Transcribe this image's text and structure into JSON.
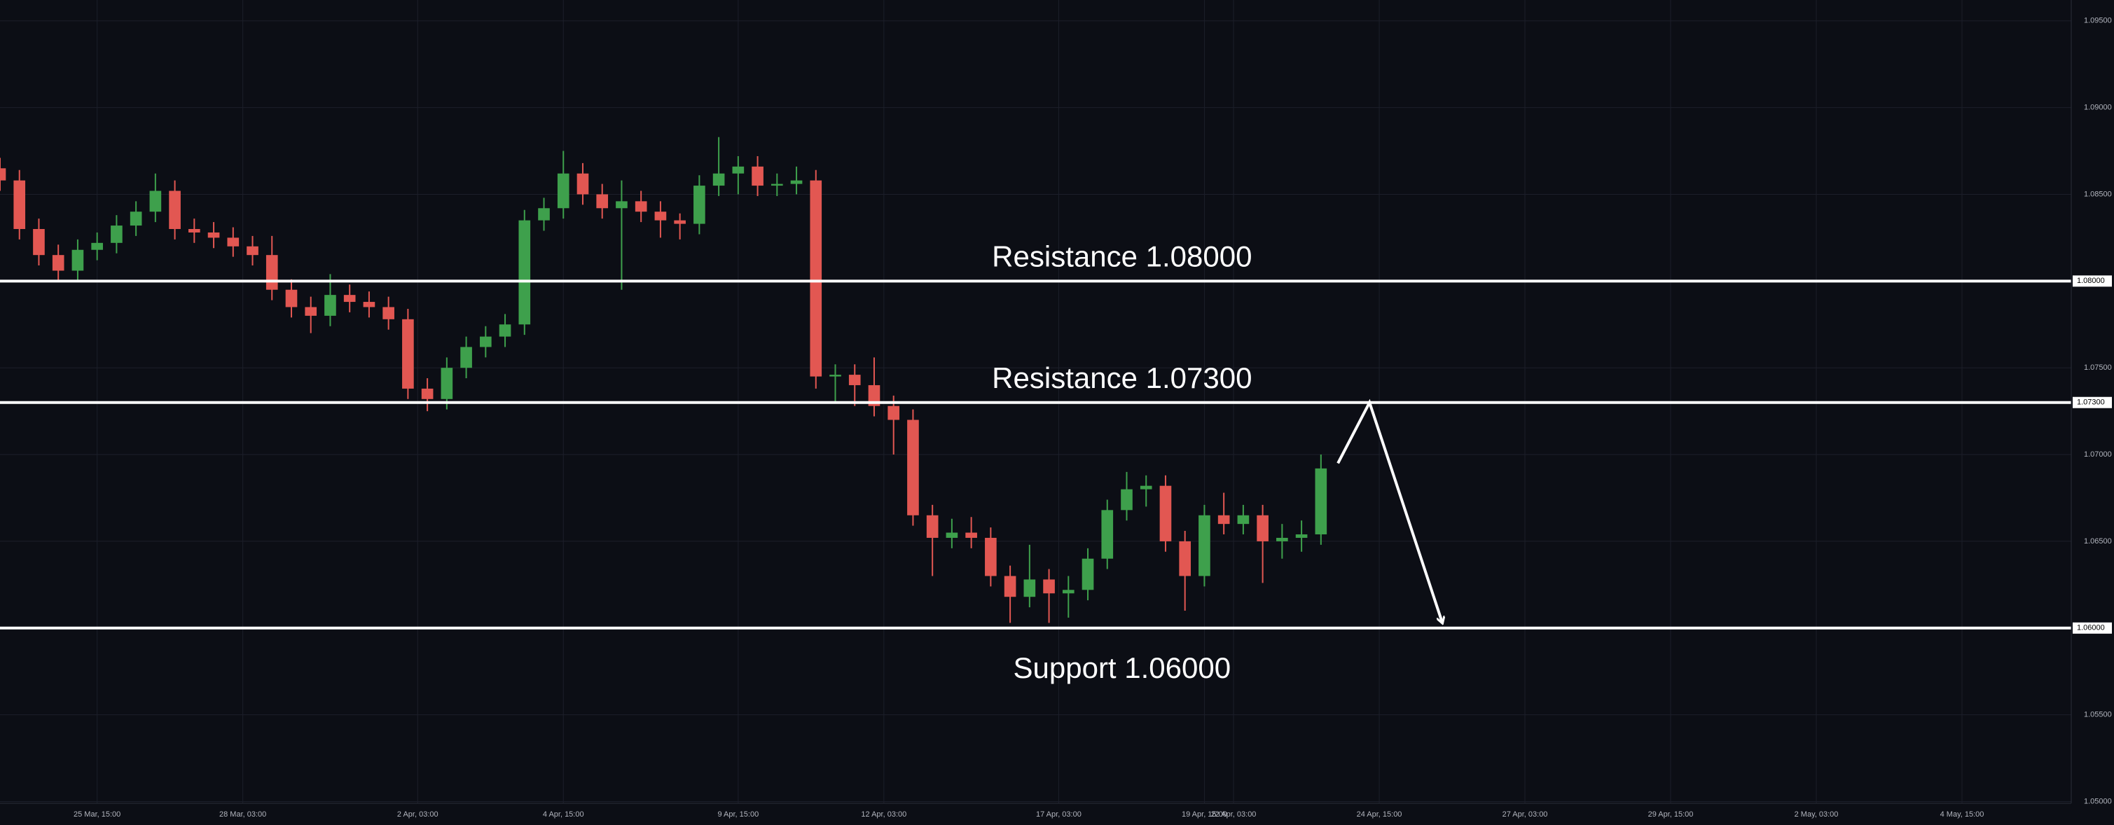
{
  "chart_data": {
    "type": "candlestick",
    "x": [
      0,
      8,
      16,
      24,
      32,
      40,
      48,
      56,
      64,
      72,
      80,
      88,
      96,
      104,
      112,
      120,
      128,
      136,
      144,
      152,
      160,
      168,
      176,
      184,
      192,
      200,
      208,
      216,
      224,
      232,
      240,
      248,
      256,
      264,
      272,
      280,
      288,
      296,
      304,
      312,
      320,
      328,
      336,
      344,
      352,
      360,
      368,
      376,
      384,
      392,
      400,
      408,
      416,
      424,
      432,
      440,
      448,
      456,
      464,
      472,
      480,
      488,
      496,
      504,
      512,
      520,
      528,
      536,
      544
    ],
    "open": [
      1.0865,
      1.0858,
      1.083,
      1.0815,
      1.0806,
      1.0818,
      1.0822,
      1.0832,
      1.084,
      1.0852,
      1.083,
      1.0828,
      1.0825,
      1.082,
      1.0815,
      1.0795,
      1.0785,
      1.078,
      1.0792,
      1.0788,
      1.0785,
      1.0778,
      1.0738,
      1.0732,
      1.075,
      1.0762,
      1.0768,
      1.0775,
      1.0835,
      1.0842,
      1.0862,
      1.085,
      1.0842,
      1.0846,
      1.084,
      1.0835,
      1.0833,
      1.0855,
      1.0862,
      1.0866,
      1.0855,
      1.0856,
      1.0858,
      1.0745,
      1.0746,
      1.074,
      1.0728,
      1.072,
      1.0665,
      1.0652,
      1.0655,
      1.0652,
      1.063,
      1.0618,
      1.0628,
      1.062,
      1.0622,
      1.064,
      1.0668,
      1.068,
      1.0682,
      1.065,
      1.063,
      1.0665,
      1.066,
      1.0665,
      1.065,
      1.0652,
      1.0654
    ],
    "high": [
      1.0871,
      1.0864,
      1.0836,
      1.0821,
      1.0824,
      1.0828,
      1.0838,
      1.0846,
      1.0862,
      1.0858,
      1.0836,
      1.0834,
      1.0831,
      1.0826,
      1.0826,
      1.0801,
      1.0791,
      1.0804,
      1.0798,
      1.0794,
      1.0791,
      1.0784,
      1.0744,
      1.0756,
      1.0768,
      1.0774,
      1.0781,
      1.0841,
      1.0848,
      1.0875,
      1.0868,
      1.0856,
      1.0858,
      1.0852,
      1.0846,
      1.0839,
      1.0861,
      1.0883,
      1.0872,
      1.0872,
      1.0862,
      1.0866,
      1.0864,
      1.0752,
      1.0752,
      1.0756,
      1.0734,
      1.0726,
      1.0671,
      1.0663,
      1.0664,
      1.0658,
      1.0636,
      1.0648,
      1.0634,
      1.063,
      1.0646,
      1.0674,
      1.069,
      1.0688,
      1.0688,
      1.0656,
      1.0671,
      1.0678,
      1.0671,
      1.0671,
      1.066,
      1.0662,
      1.07
    ],
    "low": [
      1.0852,
      1.0824,
      1.0809,
      1.08,
      1.08,
      1.0812,
      1.0816,
      1.0826,
      1.0834,
      1.0824,
      1.0822,
      1.0819,
      1.0814,
      1.0809,
      1.0789,
      1.0779,
      1.077,
      1.0774,
      1.0782,
      1.0779,
      1.0772,
      1.0732,
      1.0725,
      1.0726,
      1.0744,
      1.0756,
      1.0762,
      1.0769,
      1.0829,
      1.0836,
      1.0844,
      1.0836,
      1.0795,
      1.0834,
      1.0825,
      1.0824,
      1.0827,
      1.0849,
      1.085,
      1.0849,
      1.0849,
      1.085,
      1.0738,
      1.073,
      1.0728,
      1.0722,
      1.07,
      1.0659,
      1.063,
      1.0646,
      1.0646,
      1.0624,
      1.0603,
      1.0612,
      1.0603,
      1.0606,
      1.0616,
      1.0634,
      1.0662,
      1.067,
      1.0644,
      1.061,
      1.0624,
      1.0654,
      1.0654,
      1.0626,
      1.064,
      1.0644,
      1.0648
    ],
    "close": [
      1.0858,
      1.083,
      1.0815,
      1.0806,
      1.0818,
      1.0822,
      1.0832,
      1.084,
      1.0852,
      1.083,
      1.0828,
      1.0825,
      1.082,
      1.0815,
      1.0795,
      1.0785,
      1.078,
      1.0792,
      1.0788,
      1.0785,
      1.0778,
      1.0738,
      1.0732,
      1.075,
      1.0762,
      1.0768,
      1.0775,
      1.0835,
      1.0842,
      1.0862,
      1.085,
      1.0842,
      1.0846,
      1.084,
      1.0835,
      1.0833,
      1.0855,
      1.0862,
      1.0866,
      1.0855,
      1.0856,
      1.0858,
      1.0745,
      1.0746,
      1.074,
      1.0728,
      1.072,
      1.0665,
      1.0652,
      1.0655,
      1.0652,
      1.063,
      1.0618,
      1.0628,
      1.062,
      1.0622,
      1.064,
      1.0668,
      1.068,
      1.0682,
      1.065,
      1.063,
      1.0665,
      1.066,
      1.0665,
      1.065,
      1.0652,
      1.0654,
      1.0692
    ],
    "up_color": "#3ea04c",
    "down_color": "#e25752",
    "xlim": [
      0,
      853
    ],
    "xticks": [
      {
        "value": 40,
        "label": "25 Mar, 15:00"
      },
      {
        "value": 100,
        "label": "28 Mar, 03:00"
      },
      {
        "value": 172,
        "label": "2 Apr, 03:00"
      },
      {
        "value": 232,
        "label": "4 Apr, 15:00"
      },
      {
        "value": 304,
        "label": "9 Apr, 15:00"
      },
      {
        "value": 364,
        "label": "12 Apr, 03:00"
      },
      {
        "value": 436,
        "label": "17 Apr, 03:00"
      },
      {
        "value": 496,
        "label": "19 Apr, 15:00"
      },
      {
        "value": 508,
        "label": "22 Apr, 03:00"
      },
      {
        "value": 568,
        "label": "24 Apr, 15:00"
      },
      {
        "value": 628,
        "label": "27 Apr, 03:00"
      },
      {
        "value": 688,
        "label": "29 Apr, 15:00"
      },
      {
        "value": 748,
        "label": "2 May, 03:00"
      },
      {
        "value": 808,
        "label": "4 May, 15:00"
      }
    ],
    "ylim": [
      1.0499,
      1.0962
    ],
    "yticks": [
      {
        "value": 1.095,
        "label": "1.09500"
      },
      {
        "value": 1.09,
        "label": "1.09000"
      },
      {
        "value": 1.085,
        "label": "1.08500"
      },
      {
        "value": 1.08,
        "label": "1.08000"
      },
      {
        "value": 1.075,
        "label": "1.07500"
      },
      {
        "value": 1.07,
        "label": "1.07000"
      },
      {
        "value": 1.065,
        "label": "1.06500"
      },
      {
        "value": 1.06,
        "label": "1.06000"
      },
      {
        "value": 1.055,
        "label": "1.05500"
      },
      {
        "value": 1.05,
        "label": "1.05000"
      }
    ],
    "grid": true,
    "levels": [
      {
        "value": 1.08,
        "label": "1.08000",
        "note": "Resistance 1.08000",
        "side": "above"
      },
      {
        "value": 1.073,
        "label": "1.07300",
        "note": "Resistance 1.07300",
        "side": "above"
      },
      {
        "value": 1.06,
        "label": "1.06000",
        "note": "Support 1.06000",
        "side": "below"
      }
    ],
    "projection": {
      "x": [
        551,
        564,
        594
      ],
      "y": [
        1.0695,
        1.073,
        1.0603
      ]
    }
  }
}
